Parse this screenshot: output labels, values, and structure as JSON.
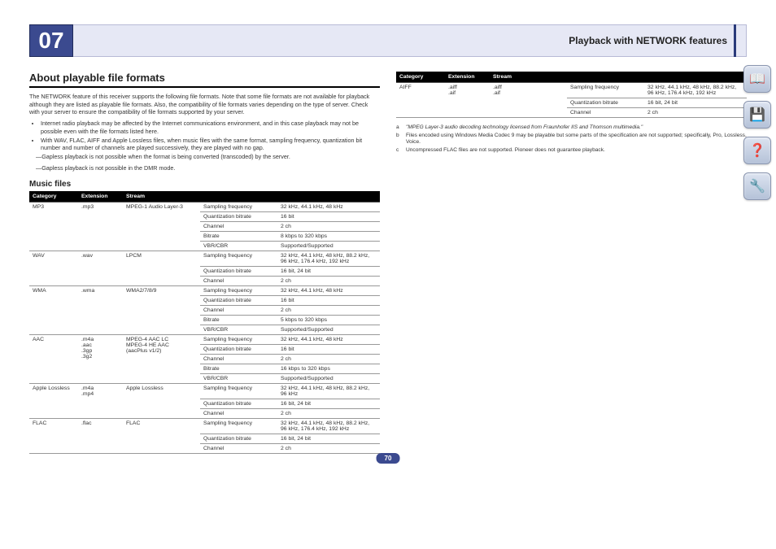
{
  "chapter": "07",
  "header_title_pre": "Playback with ",
  "header_title_net": "NETWORK",
  "header_title_post": " features",
  "h2": "About playable file formats",
  "intro": "The NETWORK feature of this receiver supports the following file formats. Note that some file formats are not available for playback although they are listed as playable file formats. Also, the compatibility of file formats varies depending on the type of server. Check with your server to ensure the compatibility of file formats supported by your server.",
  "b1": "Internet radio playback may be affected by the Internet communications environment, and in this case playback may not be possible even with the file formats listed here.",
  "b2": "With WAV, FLAC, AIFF and Apple Lossless files, when music files with the same format, sampling frequency, quantization bit number and number of channels are played successively, they are played with no gap.",
  "d1": "—Gapless playback is not possible when the format is being converted (transcoded) by the server.",
  "d2": "—Gapless playback is not possible in the DMR mode.",
  "h3": "Music files",
  "th_cat": "Category",
  "th_ext": "Extension",
  "th_str": "Stream",
  "rows_left": [
    {
      "cat": "MP3\n<a>",
      "ext": ".mp3",
      "str": "MPEG-1 Audio Layer-3",
      "params": [
        [
          "Sampling frequency",
          "32 kHz, 44.1 kHz, 48 kHz"
        ],
        [
          "Quantization bitrate",
          "16 bit"
        ],
        [
          "Channel",
          "2 ch"
        ],
        [
          "Bitrate",
          "8 kbps to 320 kbps"
        ],
        [
          "VBR/CBR",
          "Supported/Supported"
        ]
      ]
    },
    {
      "cat": "WAV",
      "ext": ".wav",
      "str": "LPCM",
      "params": [
        [
          "Sampling frequency",
          "32 kHz, 44.1 kHz, 48 kHz, 88.2 kHz, 96 kHz, 176.4 kHz, 192 kHz"
        ],
        [
          "Quantization bitrate",
          "16 bit, 24 bit"
        ],
        [
          "Channel",
          "2 ch"
        ]
      ]
    },
    {
      "cat": "WMA",
      "ext": ".wma",
      "str": "WMA2/7/8/9\n<b>",
      "params": [
        [
          "Sampling frequency",
          "32 kHz, 44.1 kHz, 48 kHz"
        ],
        [
          "Quantization bitrate",
          "16 bit"
        ],
        [
          "Channel",
          "2 ch"
        ],
        [
          "Bitrate",
          "5 kbps to 320 kbps"
        ],
        [
          "VBR/CBR",
          "Supported/Supported"
        ]
      ]
    },
    {
      "cat": "AAC",
      "ext": ".m4a\n.aac\n.3gp\n.3g2",
      "str": "MPEG-4 AAC LC\nMPEG-4 HE AAC\n(aacPlus v1/2)",
      "params": [
        [
          "Sampling frequency",
          "32 kHz, 44.1 kHz, 48 kHz"
        ],
        [
          "Quantization bitrate",
          "16 bit"
        ],
        [
          "Channel",
          "2 ch"
        ],
        [
          "Bitrate",
          "16 kbps to 320 kbps"
        ],
        [
          "VBR/CBR",
          "Supported/Supported"
        ]
      ]
    },
    {
      "cat": "Apple Lossless",
      "ext": ".m4a\n.mp4",
      "str": "Apple Lossless",
      "params": [
        [
          "Sampling frequency",
          "32 kHz, 44.1 kHz, 48 kHz, 88.2 kHz, 96 kHz"
        ],
        [
          "Quantization bitrate",
          "16 bit, 24 bit"
        ],
        [
          "Channel",
          "2 ch"
        ]
      ]
    },
    {
      "cat": "FLAC\n<c>",
      "ext": ".flac",
      "str": "FLAC",
      "params": [
        [
          "Sampling frequency",
          "32 kHz, 44.1 kHz, 48 kHz, 88.2 kHz, 96 kHz, 176.4 kHz, 192 kHz"
        ],
        [
          "Quantization bitrate",
          "16 bit, 24 bit"
        ],
        [
          "Channel",
          "2 ch"
        ]
      ]
    }
  ],
  "rows_right": [
    {
      "cat": "AIFF",
      "ext": ".aiff\n.aif",
      "str": ".aiff\n.aif",
      "params": [
        [
          "Sampling frequency",
          "32 kHz, 44.1 kHz, 48 kHz, 88.2 kHz, 96 kHz, 176.4 kHz, 192 kHz"
        ],
        [
          "Quantization bitrate",
          "16 bit, 24 bit"
        ],
        [
          "Channel",
          "2 ch"
        ]
      ]
    }
  ],
  "note_a": "\"MPEG Layer-3 audio decoding technology licensed from Fraunhofer IIS and Thomson multimedia.\"",
  "note_b": "Files encoded using Windows Media Codec 9 may be playable but some parts of the specification are not supported; specifically, Pro, Lossless, Voice.",
  "note_c": "Uncompressed FLAC files are not supported. Pioneer does not guarantee playback.",
  "page_num": "70",
  "icons": [
    "📖",
    "💾",
    "❓",
    "🔧"
  ]
}
